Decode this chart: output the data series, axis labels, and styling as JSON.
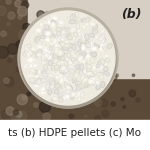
{
  "fig_width": 1.5,
  "fig_height": 1.5,
  "dpi": 100,
  "bg_dark_brown": "#5c4a38",
  "bg_light_beige": "#c8b8a8",
  "paper_color": "#d8cfc4",
  "bowl_rim_color": "#c0b8a8",
  "bowl_fill_color": "#f0ebe0",
  "label_b_text": "(b)",
  "label_b_fontsize": 9,
  "caption_text": "ts (b) HDPE pellets (c) Mo",
  "caption_fontsize": 7.5,
  "caption_color": "#222222",
  "caption_bg": "#ffffff"
}
